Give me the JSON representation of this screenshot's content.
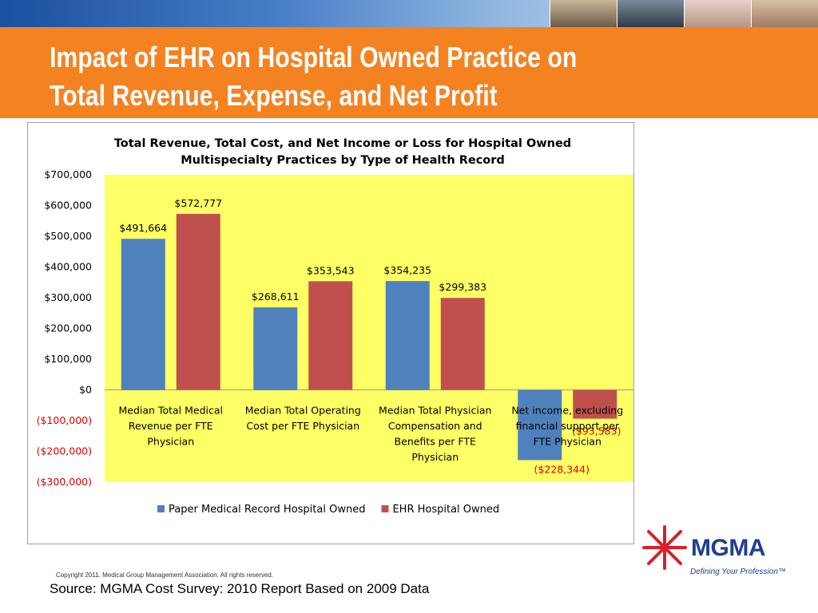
{
  "slide": {
    "title_line1": "Impact of EHR on Hospital Owned Practice on",
    "title_line2": "Total Revenue, Expense, and Net Profit"
  },
  "colors": {
    "header_band": "#f58220",
    "plot_background": "#ffff66",
    "paper_series": "#4f81bd",
    "ehr_series": "#c0504d",
    "negative_label": "#e00000"
  },
  "chart_data": {
    "type": "bar",
    "title": "Total Revenue, Total Cost, and Net Income or Loss for Hospital Owned Multispecialty Practices by Type of Health Record",
    "title_lines": [
      "Total Revenue, Total Cost, and Net Income or Loss for Hospital Owned",
      "Multispecialty Practices by Type of Health Record"
    ],
    "categories": [
      "Median Total Medical Revenue per FTE Physician",
      "Median Total Operating Cost per FTE Physician",
      "Median Total Physician Compensation and Benefits per FTE Physician",
      "Net income, excluding financial support per FTE Physician"
    ],
    "category_lines": [
      [
        "Median Total Medical",
        "Revenue per FTE",
        "Physician"
      ],
      [
        "Median Total Operating",
        "Cost per FTE Physician"
      ],
      [
        "Median Total Physician",
        "Compensation and",
        "Benefits per FTE",
        "Physician"
      ],
      [
        "Net income, excluding",
        "financial support per",
        "FTE Physician"
      ]
    ],
    "series": [
      {
        "name": "Paper Medical Record Hospital Owned",
        "color": "#4f81bd",
        "values": [
          491664,
          268611,
          354235,
          -228344
        ],
        "labels": [
          "$491,664",
          "$268,611",
          "$354,235",
          "($228,344)"
        ]
      },
      {
        "name": "EHR Hospital Owned",
        "color": "#c0504d",
        "values": [
          572777,
          353543,
          299383,
          -93583
        ],
        "labels": [
          "$572,777",
          "$353,543",
          "$299,383",
          "($93,583)"
        ]
      }
    ],
    "yticks": [
      700000,
      600000,
      500000,
      400000,
      300000,
      200000,
      100000,
      0,
      -100000,
      -200000,
      -300000
    ],
    "ytick_labels": [
      "$700,000",
      "$600,000",
      "$500,000",
      "$400,000",
      "$300,000",
      "$200,000",
      "$100,000",
      "$0",
      "($100,000)",
      "($200,000)",
      "($300,000)"
    ],
    "ylim": [
      -300000,
      700000
    ],
    "grid": false,
    "legend_position": "bottom"
  },
  "logo": {
    "name": "MGMA",
    "tagline": "Defining Your Profession™"
  },
  "footer": {
    "copyright": "Copyright 2011. Medical Group Management Association. All rights reserved.",
    "source": "Source:  MGMA Cost Survey: 2010 Report Based on 2009 Data"
  }
}
